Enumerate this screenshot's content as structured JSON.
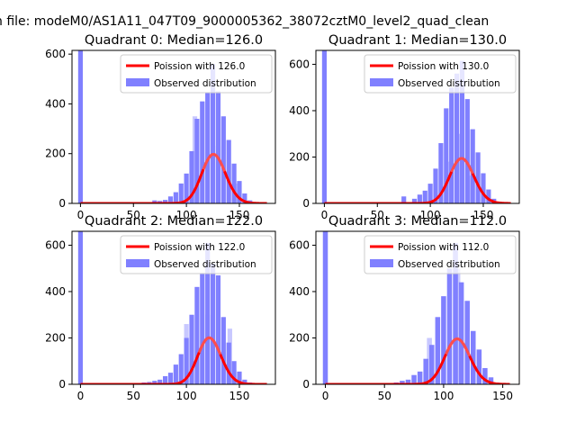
{
  "figure": {
    "suptitle": "n file: modeM0/AS1A11_047T09_9000005362_38072cztM0_level2_quad_clean"
  },
  "chart_data": [
    {
      "type": "bar",
      "title": "Quadrant 0: Median=126.0",
      "xlim": [
        -8,
        184
      ],
      "ylim": [
        0,
        615
      ],
      "xticks": [
        0,
        50,
        100,
        150
      ],
      "yticks": [
        0,
        200,
        400,
        600
      ],
      "grid": false,
      "legend_placement": "upper right",
      "median": 126.0,
      "legend": [
        {
          "kind": "line",
          "label": "Poission with 126.0",
          "color": "#ff0000"
        },
        {
          "kind": "patch",
          "label": "Observed distribution",
          "color": "#8080ff"
        }
      ],
      "hist": {
        "bin_width": 4.4,
        "zero_bar": 615,
        "values": [
          [
            70,
            12
          ],
          [
            75,
            10
          ],
          [
            80,
            14
          ],
          [
            85,
            28
          ],
          [
            90,
            45
          ],
          [
            95,
            80
          ],
          [
            100,
            120
          ],
          [
            105,
            210
          ],
          [
            110,
            340
          ],
          [
            115,
            410
          ],
          [
            120,
            445
          ],
          [
            125,
            560
          ],
          [
            130,
            450
          ],
          [
            135,
            350
          ],
          [
            140,
            255
          ],
          [
            145,
            160
          ],
          [
            150,
            90
          ],
          [
            155,
            40
          ],
          [
            160,
            12
          ]
        ],
        "ghost": [
          [
            108,
            350
          ],
          [
            130,
            230
          ],
          [
            149,
            80
          ]
        ]
      },
      "poisson": {
        "mu": 126.0,
        "xmin": 0,
        "xmax": 176,
        "scale": 5550
      }
    },
    {
      "type": "bar",
      "title": "Quadrant 1: Median=130.0",
      "xlim": [
        -8,
        184
      ],
      "ylim": [
        0,
        660
      ],
      "xticks": [
        0,
        50,
        100,
        150
      ],
      "yticks": [
        0,
        200,
        400,
        600
      ],
      "grid": false,
      "legend_placement": "upper right",
      "median": 130.0,
      "legend": [
        {
          "kind": "line",
          "label": "Poission with 130.0",
          "color": "#ff0000"
        },
        {
          "kind": "patch",
          "label": "Observed distribution",
          "color": "#8080ff"
        }
      ],
      "hist": {
        "bin_width": 4.4,
        "zero_bar": 660,
        "values": [
          [
            75,
            30
          ],
          [
            85,
            20
          ],
          [
            90,
            38
          ],
          [
            95,
            55
          ],
          [
            100,
            85
          ],
          [
            105,
            150
          ],
          [
            110,
            260
          ],
          [
            115,
            410
          ],
          [
            120,
            500
          ],
          [
            125,
            560
          ],
          [
            130,
            615
          ],
          [
            135,
            450
          ],
          [
            140,
            320
          ],
          [
            145,
            220
          ],
          [
            150,
            130
          ],
          [
            155,
            60
          ],
          [
            160,
            20
          ],
          [
            165,
            8
          ]
        ],
        "ghost": [
          [
            116,
            180
          ],
          [
            128,
            300
          ],
          [
            137,
            120
          ]
        ]
      },
      "poisson": {
        "mu": 130.0,
        "xmin": 0,
        "xmax": 176,
        "scale": 5550
      }
    },
    {
      "type": "bar",
      "title": "Quadrant 2: Median=122.0",
      "xlim": [
        -8,
        184
      ],
      "ylim": [
        0,
        660
      ],
      "xticks": [
        0,
        50,
        100,
        150
      ],
      "yticks": [
        0,
        200,
        400,
        600
      ],
      "grid": false,
      "legend_placement": "upper right",
      "median": 122.0,
      "legend": [
        {
          "kind": "line",
          "label": "Poission with 122.0",
          "color": "#ff0000"
        },
        {
          "kind": "patch",
          "label": "Observed distribution",
          "color": "#8080ff"
        }
      ],
      "hist": {
        "bin_width": 4.4,
        "zero_bar": 660,
        "values": [
          [
            60,
            8
          ],
          [
            65,
            10
          ],
          [
            70,
            15
          ],
          [
            75,
            20
          ],
          [
            80,
            35
          ],
          [
            85,
            50
          ],
          [
            90,
            85
          ],
          [
            95,
            130
          ],
          [
            100,
            200
          ],
          [
            105,
            300
          ],
          [
            110,
            420
          ],
          [
            115,
            480
          ],
          [
            120,
            610
          ],
          [
            125,
            520
          ],
          [
            130,
            470
          ],
          [
            135,
            290
          ],
          [
            140,
            180
          ],
          [
            145,
            100
          ],
          [
            150,
            55
          ],
          [
            155,
            20
          ],
          [
            160,
            8
          ]
        ],
        "ghost": [
          [
            100,
            260
          ],
          [
            120,
            300
          ],
          [
            141,
            240
          ]
        ]
      },
      "poisson": {
        "mu": 122.0,
        "xmin": 0,
        "xmax": 176,
        "scale": 5550
      }
    },
    {
      "type": "bar",
      "title": "Quadrant 3: Median=112.0",
      "xlim": [
        -8,
        164
      ],
      "ylim": [
        0,
        660
      ],
      "xticks": [
        0,
        50,
        100,
        150
      ],
      "yticks": [
        0,
        200,
        400,
        600
      ],
      "grid": false,
      "legend_placement": "upper right",
      "median": 112.0,
      "legend": [
        {
          "kind": "line",
          "label": "Poission with 112.0",
          "color": "#ff0000"
        },
        {
          "kind": "patch",
          "label": "Observed distribution",
          "color": "#8080ff"
        }
      ],
      "hist": {
        "bin_width": 4.2,
        "zero_bar": 660,
        "values": [
          [
            60,
            8
          ],
          [
            65,
            15
          ],
          [
            70,
            20
          ],
          [
            75,
            40
          ],
          [
            80,
            55
          ],
          [
            85,
            110
          ],
          [
            90,
            170
          ],
          [
            95,
            290
          ],
          [
            100,
            380
          ],
          [
            105,
            500
          ],
          [
            110,
            610
          ],
          [
            115,
            440
          ],
          [
            120,
            360
          ],
          [
            125,
            230
          ],
          [
            130,
            150
          ],
          [
            135,
            70
          ],
          [
            140,
            30
          ],
          [
            145,
            8
          ]
        ],
        "ghost": [
          [
            88,
            200
          ],
          [
            112,
            500
          ],
          [
            125,
            180
          ]
        ]
      },
      "poisson": {
        "mu": 112.0,
        "xmin": 0,
        "xmax": 156,
        "scale": 5200
      }
    }
  ]
}
